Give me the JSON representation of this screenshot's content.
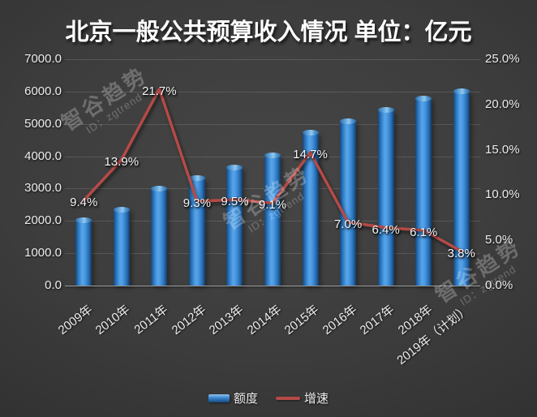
{
  "title": "北京一般公共预算收入情况 单位：亿元",
  "watermark": {
    "line1": "智谷趋势",
    "line2": "ID：zgtrend"
  },
  "colors": {
    "background": "#3c3c3c",
    "bar_blue": "#3b86cf",
    "bar_highlight": "#55a3e8",
    "line_red": "#b54a47",
    "text": "#ededed",
    "grid": "rgba(255,255,255,0.13)"
  },
  "legend": {
    "items": [
      {
        "label": "额度",
        "type": "bar"
      },
      {
        "label": "增速",
        "type": "line"
      }
    ]
  },
  "chart_data": {
    "type": "bar+line",
    "title": "北京一般公共预算收入情况 单位：亿元",
    "categories": [
      "2009年",
      "2010年",
      "2011年",
      "2012年",
      "2013年",
      "2014年",
      "2015年",
      "2016年",
      "2017年",
      "2018年",
      "2019年（计划）"
    ],
    "series": [
      {
        "name": "额度",
        "type": "bar",
        "axis": "left",
        "values": [
          2027,
          2354,
          3006,
          3315,
          3661,
          4027,
          4724,
          5081,
          5431,
          5786,
          6006
        ]
      },
      {
        "name": "增速",
        "type": "line",
        "axis": "right",
        "values": [
          9.4,
          13.9,
          21.7,
          9.3,
          9.5,
          9.1,
          14.7,
          7.0,
          6.4,
          6.1,
          3.8
        ],
        "labels": [
          "9.4%",
          "13.9%",
          "21.7%",
          "9.3%",
          "9.5%",
          "9.1%",
          "14.7%",
          "7.0%",
          "6.4%",
          "6.1%",
          "3.8%"
        ]
      }
    ],
    "left_axis": {
      "min": 0,
      "max": 7000,
      "ticks": [
        "7000.0",
        "6000.0",
        "5000.0",
        "4000.0",
        "3000.0",
        "2000.0",
        "1000.0",
        "0.0"
      ]
    },
    "right_axis": {
      "min": 0,
      "max": 25,
      "ticks": [
        "25.0%",
        "20.0%",
        "15.0%",
        "10.0%",
        "5.0%",
        "0.0%"
      ]
    },
    "grid": "horizontal",
    "legend_position": "bottom"
  }
}
